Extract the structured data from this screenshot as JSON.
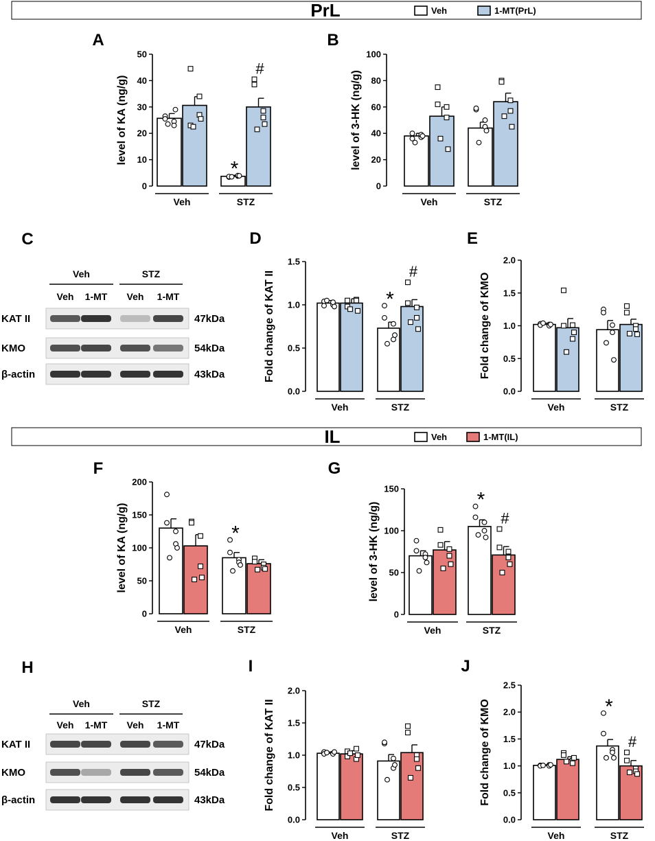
{
  "colors": {
    "veh": "#ffffff",
    "prl": "#b7cde3",
    "il": "#e57b78",
    "blot_bg": "#ececec",
    "band": "#2a2a2a"
  },
  "sections": [
    {
      "title": "PrL",
      "legend": [
        {
          "label": "Veh",
          "color": "#ffffff"
        },
        {
          "label": "1-MT(PrL)",
          "color": "#b7cde3"
        }
      ]
    },
    {
      "title": "IL",
      "legend": [
        {
          "label": "Veh",
          "color": "#ffffff"
        },
        {
          "label": "1-MT(IL)",
          "color": "#e57b78"
        }
      ]
    }
  ],
  "blots": [
    {
      "letter": "C",
      "groups": [
        "Veh",
        "STZ"
      ],
      "lanes": [
        "Veh",
        "1-MT",
        "Veh",
        "1-MT"
      ],
      "rows": [
        {
          "protein": "KAT II",
          "kda": "47kDa",
          "intensity": [
            0.75,
            0.95,
            0.25,
            0.85
          ]
        },
        {
          "protein": "KMO",
          "kda": "54kDa",
          "intensity": [
            0.8,
            0.85,
            0.8,
            0.6
          ]
        },
        {
          "protein": "β-actin",
          "kda": "43kDa",
          "intensity": [
            0.95,
            0.95,
            0.95,
            0.95
          ]
        }
      ]
    },
    {
      "letter": "H",
      "groups": [
        "Veh",
        "STZ"
      ],
      "lanes": [
        "Veh",
        "1-MT",
        "Veh",
        "1-MT"
      ],
      "rows": [
        {
          "protein": "KAT II",
          "kda": "47kDa",
          "intensity": [
            0.85,
            0.85,
            0.85,
            0.75
          ]
        },
        {
          "protein": "KMO",
          "kda": "54kDa",
          "intensity": [
            0.8,
            0.35,
            0.85,
            0.75
          ]
        },
        {
          "protein": "β-actin",
          "kda": "43kDa",
          "intensity": [
            0.95,
            0.95,
            0.95,
            0.95
          ]
        }
      ]
    }
  ],
  "chart_data": [
    {
      "letter": "A",
      "type": "bar",
      "ylabel": "level of KA (ng/g)",
      "ylim": [
        0,
        50
      ],
      "yticks": [
        "0",
        "10",
        "20",
        "30",
        "40",
        "50"
      ],
      "groups": [
        "Veh",
        "STZ"
      ],
      "series": [
        "Veh",
        "1-MT(PrL)"
      ],
      "values": [
        25.7,
        30.6,
        3.7,
        30.0
      ],
      "sem": [
        1.8,
        3.3,
        0.4,
        3.3
      ],
      "points": [
        [
          26.5,
          25.5,
          24.5,
          23.0,
          23.5,
          29.0
        ],
        [
          44.5,
          23.0,
          27.0,
          34.0,
          22.5,
          25.5
        ],
        [
          3.4,
          3.6,
          3.8,
          4.0,
          3.5,
          3.9
        ],
        [
          38.5,
          40.5,
          28.5,
          26.0,
          21.5,
          23.5
        ]
      ],
      "annotations": [
        "",
        "",
        "*",
        "#"
      ]
    },
    {
      "letter": "B",
      "type": "bar",
      "ylabel": "level of 3-HK (ng/g)",
      "ylim": [
        0,
        100
      ],
      "yticks": [
        "0",
        "20",
        "40",
        "60",
        "80",
        "100"
      ],
      "groups": [
        "Veh",
        "STZ"
      ],
      "series": [
        "Veh",
        "1-MT(PrL)"
      ],
      "values": [
        38.0,
        53.0,
        44.0,
        64.0
      ],
      "sem": [
        2.0,
        7.0,
        4.5,
        6.5
      ],
      "points": [
        [
          40,
          36,
          37,
          39,
          33,
          38
        ],
        [
          75,
          62,
          60,
          52,
          36,
          28
        ],
        [
          58,
          59,
          50,
          45,
          33,
          42
        ],
        [
          80,
          79,
          65,
          57,
          53,
          45
        ]
      ],
      "annotations": [
        "",
        "",
        "",
        ""
      ]
    },
    {
      "letter": "D",
      "type": "bar",
      "ylabel": "Fold change of KAT II",
      "ylim": [
        0,
        1.5
      ],
      "yticks": [
        "0.0",
        "0.5",
        "1.0",
        "1.5"
      ],
      "groups": [
        "Veh",
        "STZ"
      ],
      "series": [
        "Veh",
        "1-MT(PrL)"
      ],
      "values": [
        1.02,
        1.02,
        0.73,
        0.98
      ],
      "sem": [
        0.03,
        0.05,
        0.07,
        0.08
      ],
      "points": [
        [
          1.04,
          0.99,
          1.0,
          1.03,
          1.05,
          0.98
        ],
        [
          1.05,
          0.98,
          1.06,
          1.05,
          0.95,
          0.93
        ],
        [
          0.99,
          0.85,
          0.78,
          0.6,
          0.55,
          0.65
        ],
        [
          1.26,
          1.02,
          0.97,
          0.85,
          0.8,
          0.72
        ]
      ],
      "annotations": [
        "",
        "",
        "*",
        "#"
      ]
    },
    {
      "letter": "E",
      "type": "bar",
      "ylabel": "Fold change of KMO",
      "ylim": [
        0,
        2.0
      ],
      "yticks": [
        "0.0",
        "0.5",
        "1.0",
        "1.5",
        "2.0"
      ],
      "groups": [
        "Veh",
        "STZ"
      ],
      "series": [
        "Veh",
        "1-MT(PrL)"
      ],
      "values": [
        1.02,
        0.97,
        0.94,
        1.02
      ],
      "sem": [
        0.02,
        0.14,
        0.14,
        0.08
      ],
      "points": [
        [
          1.03,
          1.01,
          1.02,
          1.0,
          1.04,
          1.02
        ],
        [
          1.54,
          1.0,
          1.01,
          0.8,
          0.6,
          0.9
        ],
        [
          1.25,
          1.2,
          1.01,
          0.9,
          0.74,
          0.48
        ],
        [
          1.3,
          1.2,
          1.0,
          0.95,
          0.88,
          0.87
        ]
      ],
      "annotations": [
        "",
        "",
        "",
        ""
      ]
    },
    {
      "letter": "F",
      "type": "bar",
      "ylabel": "level of KA (ng/g)",
      "ylim": [
        0,
        200
      ],
      "yticks": [
        "0",
        "50",
        "100",
        "150",
        "200"
      ],
      "groups": [
        "Veh",
        "STZ"
      ],
      "series": [
        "Veh",
        "1-MT(IL)"
      ],
      "values": [
        130,
        103,
        85,
        76
      ],
      "sem": [
        14,
        17,
        8,
        6
      ],
      "points": [
        [
          181,
          138,
          125,
          106,
          85,
          100
        ],
        [
          140,
          138,
          118,
          72,
          52,
          55
        ],
        [
          112,
          93,
          82,
          78,
          65,
          74
        ],
        [
          84,
          79,
          75,
          70,
          67,
          68
        ]
      ],
      "annotations": [
        "",
        "",
        "*",
        ""
      ]
    },
    {
      "letter": "G",
      "type": "bar",
      "ylabel": "level of 3-HK (ng/g)",
      "ylim": [
        0,
        150
      ],
      "yticks": [
        "0",
        "50",
        "100",
        "150"
      ],
      "groups": [
        "Veh",
        "STZ"
      ],
      "series": [
        "Veh",
        "1-MT(IL)"
      ],
      "values": [
        70,
        77,
        105,
        71
      ],
      "sem": [
        6,
        10,
        8,
        10
      ],
      "points": [
        [
          88,
          76,
          72,
          68,
          52,
          62
        ],
        [
          101,
          83,
          78,
          70,
          55,
          60
        ],
        [
          129,
          116,
          110,
          100,
          95,
          92
        ],
        [
          102,
          80,
          75,
          68,
          50,
          60
        ]
      ],
      "annotations": [
        "",
        "",
        "*",
        "#"
      ]
    },
    {
      "letter": "I",
      "type": "bar",
      "ylabel": "Fold change of KAT II",
      "ylim": [
        0,
        2.0
      ],
      "yticks": [
        "0.0",
        "0.5",
        "1.0",
        "1.5",
        "2.0"
      ],
      "groups": [
        "Veh",
        "STZ"
      ],
      "series": [
        "Veh",
        "1-MT(IL)"
      ],
      "values": [
        1.03,
        1.02,
        0.91,
        1.04
      ],
      "sem": [
        0.02,
        0.05,
        0.1,
        0.12
      ],
      "points": [
        [
          1.05,
          1.02,
          1.03,
          1.02,
          1.04,
          1.05
        ],
        [
          1.06,
          0.98,
          0.94,
          1.1,
          1.03,
          1.0
        ],
        [
          1.18,
          1.2,
          0.95,
          0.8,
          0.62,
          0.85
        ],
        [
          1.45,
          1.35,
          1.0,
          0.94,
          0.65,
          0.8
        ]
      ],
      "annotations": [
        "",
        "",
        "",
        ""
      ]
    },
    {
      "letter": "J",
      "type": "bar",
      "ylabel": "Fold change of KMO",
      "ylim": [
        0,
        2.5
      ],
      "yticks": [
        "0.0",
        "0.5",
        "1.0",
        "1.5",
        "2.0",
        "2.5"
      ],
      "groups": [
        "Veh",
        "STZ"
      ],
      "series": [
        "Veh",
        "1-MT(IL)"
      ],
      "values": [
        1.01,
        1.12,
        1.37,
        1.0
      ],
      "sem": [
        0.01,
        0.05,
        0.12,
        0.1
      ],
      "points": [
        [
          1.01,
          1.0,
          1.02,
          1.0,
          1.01,
          1.02
        ],
        [
          1.24,
          1.2,
          1.1,
          1.05,
          1.08,
          1.15
        ],
        [
          1.98,
          1.6,
          1.3,
          1.25,
          1.15,
          1.15
        ],
        [
          1.25,
          1.1,
          0.95,
          0.9,
          0.88,
          0.85
        ]
      ],
      "annotations": [
        "",
        "",
        "*",
        "#"
      ]
    }
  ]
}
